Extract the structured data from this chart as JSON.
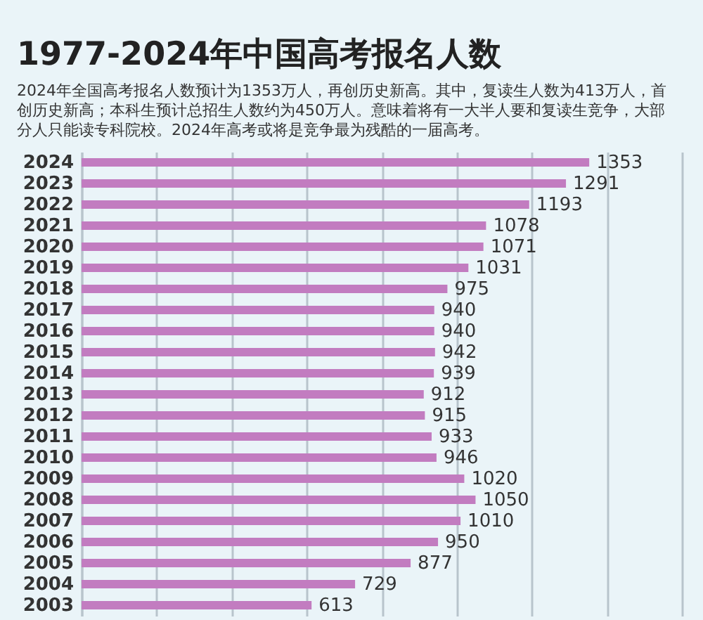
{
  "chart_data": {
    "type": "bar",
    "orientation": "horizontal",
    "title": "1977-2024年中国高考报名人数",
    "subtitle": "2024年全国高考报名人数预计为1353万人，再创历史新高。其中，复读生人数为413万人，首创历史新高；本科生预计总招生人数约为450万人。意味着将有一大半人要和复读生竞争，大部分人只能读专科院校。2024年高考或将是竞争最为残酷的一届高考。",
    "categories": [
      "2024",
      "2023",
      "2022",
      "2021",
      "2020",
      "2019",
      "2018",
      "2017",
      "2016",
      "2015",
      "2014",
      "2013",
      "2012",
      "2011",
      "2010",
      "2009",
      "2008",
      "2007",
      "2006",
      "2005",
      "2004",
      "2003"
    ],
    "values": [
      1353,
      1291,
      1193,
      1078,
      1071,
      1031,
      975,
      940,
      940,
      942,
      939,
      912,
      915,
      933,
      946,
      1020,
      1050,
      1010,
      950,
      877,
      729,
      613
    ],
    "color": "#c27cc0",
    "xlim": [
      0,
      1600
    ],
    "xticks": [
      {
        "value": 0,
        "label": null
      },
      {
        "value": 200,
        "label": null
      },
      {
        "value": 400,
        "label": null
      },
      {
        "value": 600,
        "label": null
      },
      {
        "value": 800,
        "label": null
      },
      {
        "value": 1000,
        "label": null
      },
      {
        "value": 1200,
        "label": null
      },
      {
        "value": 1400,
        "label": null
      },
      {
        "value": 1600,
        "label": null
      }
    ],
    "tick_labels": "y",
    "grid": "x",
    "data_labels": true
  }
}
